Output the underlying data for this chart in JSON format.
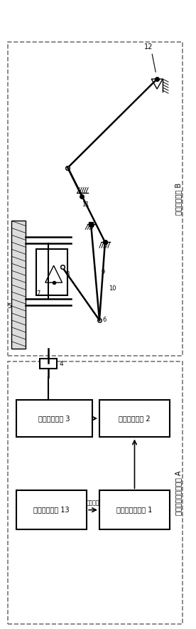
{
  "fig_width": 2.76,
  "fig_height": 8.84,
  "bg_color": "#ffffff",
  "dash_color": "#777777",
  "black": "#000000",
  "gray": "#aaaaaa",
  "box_b_label": "机械传动系统 B",
  "box_a_label": "计算机控制驱动系统 A",
  "block1_label": "计算机控制单元 1",
  "block2_label": "电机驱动单元 2",
  "block3_label": "交流伺服电机 3",
  "block13_label": "信号处理单元 13",
  "arrow_label": "控制信号",
  "label_12": "12",
  "label_11": "11",
  "label_10": "10",
  "label_9": "9",
  "label_8": "8",
  "label_7": "7",
  "label_6": "6",
  "label_5": "5",
  "label_4": "4"
}
